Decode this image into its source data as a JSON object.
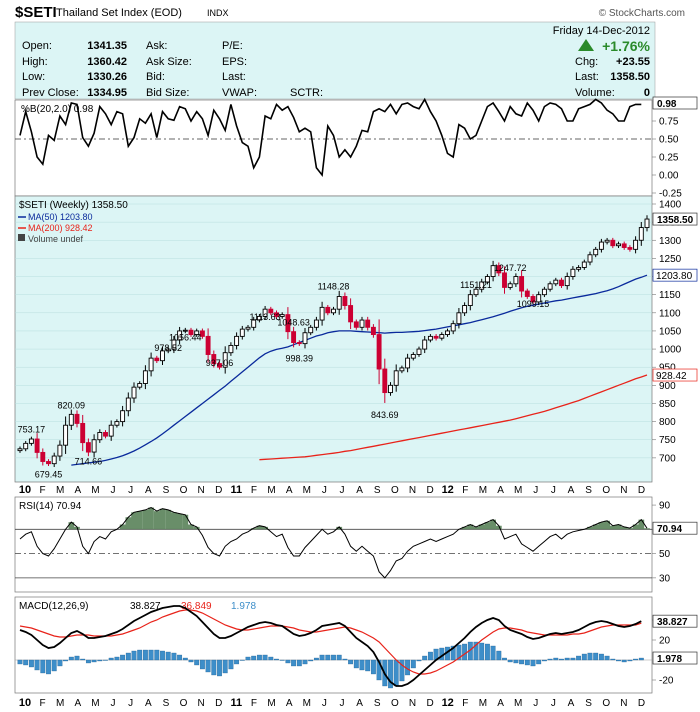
{
  "header": {
    "symbol": "$SETI",
    "name": "Thailand Set Index (EOD)",
    "exchange": "INDX",
    "brand": "© StockCharts.com",
    "date": "Friday  14-Dec-2012",
    "pct_change": "+1.76%",
    "quote_left": [
      {
        "label": "Open:",
        "value": "1341.35"
      },
      {
        "label": "High:",
        "value": "1360.42"
      },
      {
        "label": "Low:",
        "value": "1330.26"
      },
      {
        "label": "Prev Close:",
        "value": "1334.95"
      }
    ],
    "quote_mid": [
      "Ask:",
      "Ask Size:",
      "Bid:",
      "Bid Size:"
    ],
    "quote_mid2": [
      "P/E:",
      "EPS:",
      "Last:",
      "VWAP:"
    ],
    "sctr_label": "SCTR:",
    "quote_right": [
      {
        "label": "Chg:",
        "value": "+23.55"
      },
      {
        "label": "Last:",
        "value": "1358.50"
      },
      {
        "label": "Volume:",
        "value": "0"
      }
    ]
  },
  "colors": {
    "panel_bg": "#dcf5f5",
    "up": "#000000",
    "down": "#cc0033",
    "ma50": "#0a2a9c",
    "ma200": "#e8231a",
    "macd_hist": "#3d8ec9",
    "rsi_fill": "#4f7a4f",
    "up_arrow": "#2a8a2a"
  },
  "chart_data": [
    {
      "type": "line",
      "title": "%B(20,2.0) 0.98",
      "ylim": [
        -0.25,
        1.0
      ],
      "yticks": [
        0.0,
        0.25,
        0.5,
        0.75,
        -0.25
      ],
      "tick_labels": [
        "0.00",
        "0.25",
        "0.50",
        "0.75",
        "-0.25"
      ],
      "last_value": "0.98",
      "reference_line": 0.5,
      "y": [
        0.55,
        0.88,
        0.6,
        0.25,
        0.15,
        0.55,
        0.48,
        0.82,
        0.7,
        1.0,
        0.98,
        0.52,
        0.4,
        0.58,
        0.95,
        0.85,
        0.7,
        0.88,
        0.85,
        0.4,
        0.52,
        0.78,
        0.72,
        0.85,
        0.52,
        0.88,
        0.78,
        0.76,
        0.95,
        0.92,
        0.75,
        0.88,
        0.78,
        0.55,
        0.9,
        0.78,
        0.62,
        0.98,
        0.68,
        0.45,
        0.4,
        0.1,
        0.25,
        0.82,
        0.78,
        0.98,
        0.9,
        0.95,
        0.8,
        0.6,
        0.65,
        0.6,
        0.1,
        0.0,
        0.68,
        0.55,
        0.25,
        0.35,
        0.25,
        0.4,
        0.62,
        0.6,
        0.88,
        0.92,
        0.88,
        0.98,
        0.85,
        0.98,
        1.0,
        0.95,
        0.92,
        1.05,
        0.88,
        0.75,
        0.55,
        0.3,
        0.25,
        0.7,
        0.65,
        0.5,
        0.55,
        0.75,
        0.95,
        1.0,
        0.88,
        0.75,
        0.95,
        0.85,
        0.82,
        1.0,
        0.9,
        0.75,
        0.95,
        1.0,
        0.98,
        0.92,
        0.75,
        0.75,
        0.92,
        0.95,
        0.98,
        1.05,
        1.0,
        0.9,
        0.85,
        0.75,
        0.75,
        0.95,
        0.98,
        0.98
      ]
    },
    {
      "type": "candlestick",
      "title": "$SETI (Weekly) 1358.50",
      "ylim": [
        650,
        1400
      ],
      "yticks": [
        700,
        750,
        800,
        850,
        900,
        950,
        1000,
        1050,
        1100,
        1150,
        1200,
        1250,
        1300,
        1350,
        1400
      ],
      "tick_labels": [
        "700",
        "750",
        "800",
        "850",
        "900",
        "950",
        "1000",
        "1050",
        "1100",
        "1150",
        "1200",
        "1250",
        "1300",
        "1350",
        "1400"
      ],
      "last_value": "1358.50",
      "legend": [
        {
          "name": "MA(50) 1203.80",
          "color": "#0a2a9c"
        },
        {
          "name": "MA(200) 928.42",
          "color": "#e8231a"
        },
        {
          "name": "Volume undef",
          "color": "#444444"
        }
      ],
      "ma50_value": "1203.80",
      "ma200_value": "928.42",
      "close": [
        725,
        740,
        752,
        715,
        690,
        684,
        705,
        735,
        790,
        820,
        795,
        742,
        716,
        750,
        770,
        760,
        790,
        800,
        830,
        865,
        895,
        905,
        940,
        975,
        968,
        995,
        1000,
        1025,
        1050,
        1052,
        1040,
        1050,
        1035,
        985,
        960,
        950,
        990,
        1010,
        1035,
        1055,
        1060,
        1080,
        1090,
        1110,
        1100,
        1090,
        1095,
        1048,
        1018,
        1015,
        1045,
        1060,
        1080,
        1115,
        1100,
        1110,
        1145,
        1120,
        1075,
        1060,
        1080,
        1060,
        1040,
        945,
        880,
        900,
        940,
        948,
        975,
        985,
        1000,
        1025,
        1035,
        1030,
        1040,
        1050,
        1070,
        1100,
        1120,
        1150,
        1165,
        1185,
        1200,
        1230,
        1210,
        1170,
        1180,
        1200,
        1160,
        1145,
        1130,
        1150,
        1165,
        1180,
        1190,
        1175,
        1200,
        1220,
        1225,
        1240,
        1260,
        1275,
        1295,
        1300,
        1285,
        1290,
        1280,
        1275,
        1300,
        1335,
        1358.5
      ],
      "ma50": [
        680,
        682,
        684,
        686,
        688,
        690,
        693,
        697,
        701,
        706,
        712,
        719,
        727,
        736,
        745,
        755,
        766,
        778,
        790,
        802,
        814,
        826,
        838,
        850,
        862,
        874,
        886,
        898,
        911,
        924,
        937,
        950,
        963,
        976,
        987,
        994,
        999,
        1002,
        1006,
        1012,
        1018,
        1024,
        1030,
        1036,
        1040,
        1045,
        1048,
        1050,
        1050,
        1050,
        1049,
        1048,
        1047,
        1046,
        1045,
        1044,
        1045,
        1046,
        1046,
        1047,
        1048,
        1049,
        1051,
        1053,
        1055,
        1058,
        1061,
        1064,
        1067,
        1070,
        1073,
        1077,
        1081,
        1085,
        1089,
        1094,
        1099,
        1104,
        1109,
        1114,
        1118,
        1121,
        1124,
        1127,
        1130,
        1133,
        1135,
        1138,
        1141,
        1144,
        1147,
        1150,
        1153,
        1157,
        1161,
        1166,
        1172,
        1179,
        1186,
        1193,
        1198,
        1203.8
      ],
      "ma200": [
        695,
        696,
        697,
        698,
        699,
        700,
        701,
        702,
        703,
        705,
        707,
        709,
        711,
        713,
        715,
        718,
        720,
        723,
        726,
        729,
        732,
        735,
        738,
        741,
        744,
        747,
        750,
        753,
        756,
        759,
        762,
        765,
        768,
        771,
        774,
        777,
        780,
        783,
        786,
        789,
        792,
        795,
        798,
        801,
        804,
        808,
        812,
        816,
        820,
        824,
        828,
        833,
        838,
        843,
        848,
        853,
        858,
        864,
        870,
        876,
        882,
        888,
        894,
        900,
        906,
        912,
        918,
        923,
        928.42
      ],
      "annotations": [
        {
          "label": "753.17",
          "x_index": 2,
          "value": 753.17
        },
        {
          "label": "679.45",
          "x_index": 5,
          "value": 679.45
        },
        {
          "label": "820.09",
          "x_index": 9,
          "value": 820.09
        },
        {
          "label": "714.66",
          "x_index": 12,
          "value": 714.66
        },
        {
          "label": "978.52",
          "x_index": 26,
          "value": 978.52
        },
        {
          "label": "1056.44",
          "x_index": 29,
          "value": 1056.44
        },
        {
          "label": "937.06",
          "x_index": 35,
          "value": 937.06
        },
        {
          "label": "1113.63",
          "x_index": 43,
          "value": 1113.63
        },
        {
          "label": "1048.63",
          "x_index": 48,
          "value": 1048.63
        },
        {
          "label": "998.39",
          "x_index": 49,
          "value": 998.39
        },
        {
          "label": "1148.28",
          "x_index": 55,
          "value": 1148.28
        },
        {
          "label": "843.69",
          "x_index": 64,
          "value": 843.69
        },
        {
          "label": "1151.21",
          "x_index": 80,
          "value": 1151.21
        },
        {
          "label": "1247.72",
          "x_index": 86,
          "value": 1247.72
        },
        {
          "label": "1099.15",
          "x_index": 90,
          "value": 1099.15
        }
      ]
    },
    {
      "type": "line",
      "title": "RSI(14) 70.94",
      "ylim": [
        20,
        95
      ],
      "yticks": [
        90,
        70,
        50,
        30
      ],
      "tick_labels": [
        "90",
        "70",
        "50",
        "30"
      ],
      "last_value": "70.94",
      "reference_lines": [
        70,
        30,
        50
      ],
      "y": [
        62,
        66,
        68,
        56,
        50,
        48,
        54,
        62,
        70,
        76,
        72,
        56,
        50,
        60,
        64,
        62,
        68,
        70,
        74,
        80,
        84,
        85,
        86,
        88,
        85,
        87,
        86,
        84,
        83,
        82,
        74,
        72,
        65,
        55,
        50,
        48,
        56,
        60,
        62,
        66,
        68,
        71,
        73,
        72,
        68,
        64,
        66,
        55,
        48,
        48,
        55,
        60,
        65,
        70,
        66,
        68,
        72,
        66,
        56,
        52,
        56,
        52,
        48,
        35,
        30,
        36,
        44,
        46,
        52,
        56,
        58,
        60,
        62,
        60,
        62,
        64,
        66,
        70,
        72,
        74,
        72,
        74,
        76,
        78,
        73,
        62,
        64,
        66,
        58,
        55,
        52,
        56,
        60,
        64,
        66,
        62,
        66,
        68,
        69,
        70,
        72,
        74,
        76,
        77,
        73,
        74,
        72,
        71,
        74,
        78,
        70.94
      ]
    },
    {
      "type": "line",
      "title": "MACD(12,26,9)",
      "series_labels": [
        "38.827",
        "36.849",
        "1.978"
      ],
      "series": [
        {
          "name": "MACD",
          "color": "#000000",
          "last_value": "38.827"
        },
        {
          "name": "Signal",
          "color": "#e8231a",
          "last_value": "36.849"
        },
        {
          "name": "Histogram",
          "color": "#3d8ec9",
          "last_value": "1.978"
        }
      ],
      "ylim": [
        -30,
        60
      ],
      "yticks": [
        40,
        20,
        -20
      ],
      "tick_labels": [
        "40",
        "20",
        "-20"
      ],
      "last_values": [
        "38.827",
        "1.978"
      ],
      "macd": [
        30,
        28,
        25,
        20,
        15,
        12,
        13,
        17,
        22,
        27,
        29,
        26,
        22,
        22,
        23,
        24,
        26,
        28,
        31,
        35,
        39,
        42,
        45,
        48,
        50,
        52,
        53,
        54,
        54,
        52,
        48,
        44,
        38,
        32,
        26,
        22,
        22,
        24,
        27,
        30,
        33,
        35,
        37,
        38,
        37,
        35,
        34,
        30,
        26,
        24,
        25,
        27,
        30,
        34,
        35,
        36,
        37,
        34,
        28,
        22,
        18,
        14,
        8,
        -2,
        -14,
        -22,
        -26,
        -26,
        -24,
        -20,
        -15,
        -10,
        -5,
        0,
        4,
        8,
        12,
        17,
        22,
        28,
        33,
        37,
        40,
        42,
        40,
        34,
        30,
        28,
        26,
        23,
        21,
        22,
        24,
        26,
        27,
        26,
        27,
        28,
        30,
        33,
        36,
        38,
        39,
        38,
        36,
        34,
        33,
        34,
        36,
        38.827
      ],
      "signal": [
        34,
        33,
        32,
        30,
        28,
        26,
        24,
        23,
        23,
        24,
        25,
        25,
        25,
        24,
        24,
        24,
        24,
        25,
        26,
        28,
        30,
        32,
        35,
        38,
        40,
        43,
        45,
        47,
        49,
        50,
        50,
        49,
        47,
        44,
        41,
        38,
        35,
        33,
        31,
        30,
        30,
        31,
        32,
        33,
        34,
        34,
        34,
        33,
        32,
        30,
        29,
        28,
        28,
        29,
        30,
        31,
        32,
        33,
        32,
        30,
        28,
        25,
        22,
        18,
        12,
        6,
        0,
        -5,
        -9,
        -12,
        -14,
        -14,
        -13,
        -11,
        -8,
        -5,
        -2,
        2,
        6,
        10,
        15,
        20,
        24,
        28,
        31,
        32,
        32,
        31,
        30,
        28,
        27,
        26,
        25,
        25,
        25,
        25,
        25,
        26,
        26,
        27,
        29,
        31,
        33,
        34,
        35,
        35,
        35,
        35,
        35,
        36.849
      ]
    }
  ],
  "x_axis": {
    "labels": [
      "10",
      "F",
      "M",
      "A",
      "M",
      "J",
      "J",
      "A",
      "S",
      "O",
      "N",
      "D",
      "11",
      "F",
      "M",
      "A",
      "M",
      "J",
      "J",
      "A",
      "S",
      "O",
      "N",
      "D",
      "12",
      "F",
      "M",
      "A",
      "M",
      "J",
      "J",
      "A",
      "S",
      "O",
      "N",
      "D"
    ],
    "bold": [
      "10",
      "11",
      "12"
    ]
  }
}
